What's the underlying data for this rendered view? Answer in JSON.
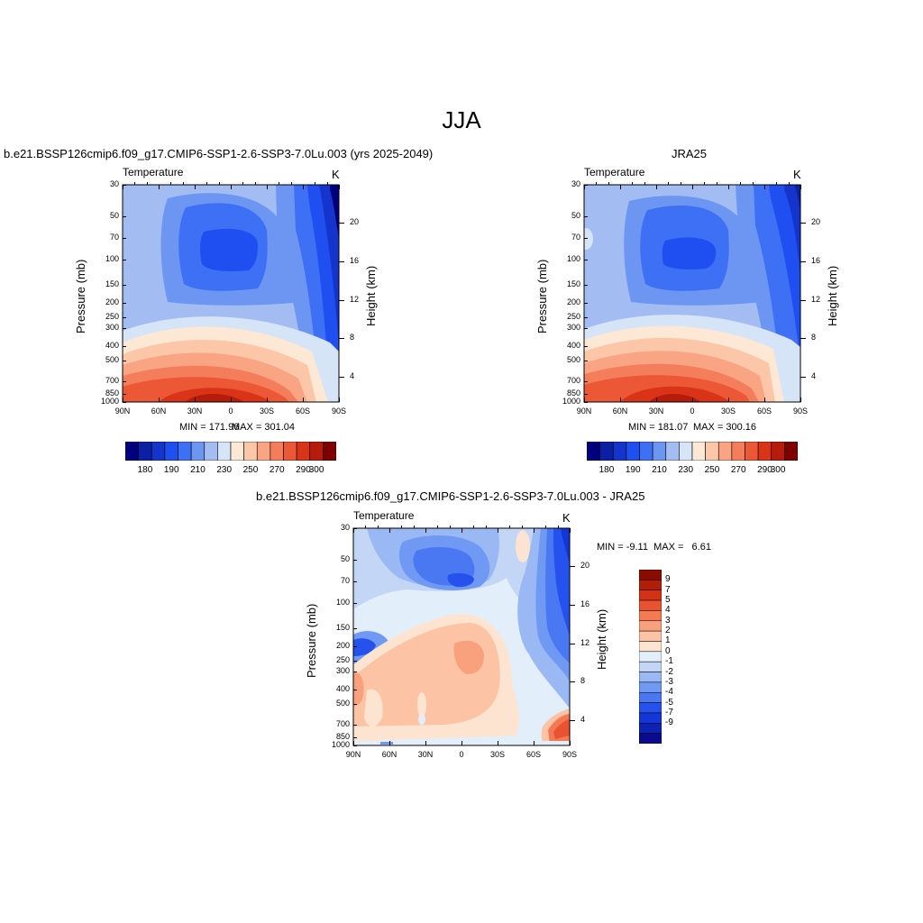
{
  "figure": {
    "title": "JJA"
  },
  "colors": {
    "abs_scale": [
      "#00007f",
      "#0d1fa3",
      "#1434cc",
      "#1f4ff0",
      "#3d70f5",
      "#6d96f3",
      "#a3bdf2",
      "#d6e4f7",
      "#fde8d5",
      "#fcc7a9",
      "#f9a483",
      "#f47e5c",
      "#ec5735",
      "#da3418",
      "#b51c0c",
      "#7f0000"
    ],
    "diff_scale": [
      "#0a0a8c",
      "#0c22b5",
      "#1436d6",
      "#2552ec",
      "#4a78f2",
      "#7099f3",
      "#9ab8f4",
      "#c3d6f6",
      "#e2eefa",
      "#fde4d0",
      "#fcc4a5",
      "#f9a07c",
      "#f47a54",
      "#ea5331",
      "#d43215",
      "#b01f0a",
      "#8a0b00"
    ]
  },
  "chart_data": [
    {
      "type": "heatmap",
      "title": "b.e21.BSSP126cmip6.f09_g17.CMIP6-SSP1-2.6-SSP3-7.0Lu.003 (yrs 2025-2049)",
      "variable": "Temperature",
      "units": "K",
      "min_label": "MIN = 171.96",
      "max_label": "MAX = 301.04",
      "xlabel": "",
      "ylabel": "Pressure (mb)",
      "y2label": "Height (km)",
      "x_ticks": [
        "90N",
        "60N",
        "30N",
        "0",
        "30S",
        "60S",
        "90S"
      ],
      "y_ticks": [
        "30",
        "50",
        "70",
        "100",
        "150",
        "200",
        "250",
        "300",
        "400",
        "500",
        "700",
        "850",
        "1000"
      ],
      "y2_ticks": [
        "20",
        "16",
        "12",
        "8",
        "4"
      ],
      "colorbar": {
        "orientation": "horizontal",
        "labels": [
          "180",
          "190",
          "210",
          "230",
          "250",
          "270",
          "290",
          "300"
        ],
        "levels": [
          175,
          180,
          185,
          190,
          200,
          210,
          220,
          230,
          240,
          250,
          260,
          270,
          280,
          290,
          295,
          300
        ]
      }
    },
    {
      "type": "heatmap",
      "title": "JRA25",
      "variable": "Temperature",
      "units": "K",
      "min_label": "MIN = 181.07",
      "max_label": "MAX = 300.16",
      "xlabel": "",
      "ylabel": "Pressure (mb)",
      "y2label": "Height (km)",
      "x_ticks": [
        "90N",
        "60N",
        "30N",
        "0",
        "30S",
        "60S",
        "90S"
      ],
      "y_ticks": [
        "30",
        "50",
        "70",
        "100",
        "150",
        "200",
        "250",
        "300",
        "400",
        "500",
        "700",
        "850",
        "1000"
      ],
      "y2_ticks": [
        "20",
        "16",
        "12",
        "8",
        "4"
      ],
      "colorbar": {
        "orientation": "horizontal",
        "labels": [
          "180",
          "190",
          "210",
          "230",
          "250",
          "270",
          "290",
          "300"
        ],
        "levels": [
          175,
          180,
          185,
          190,
          200,
          210,
          220,
          230,
          240,
          250,
          260,
          270,
          280,
          290,
          295,
          300
        ]
      }
    },
    {
      "type": "heatmap",
      "title": "b.e21.BSSP126cmip6.f09_g17.CMIP6-SSP1-2.6-SSP3-7.0Lu.003 - JRA25",
      "variable": "Temperature",
      "units": "K",
      "stats_label": "MIN = -9.11  MAX =   6.61",
      "xlabel": "",
      "ylabel": "Pressure (mb)",
      "y2label": "Height (km)",
      "x_ticks": [
        "90N",
        "60N",
        "30N",
        "0",
        "30S",
        "60S",
        "90S"
      ],
      "y_ticks": [
        "30",
        "50",
        "70",
        "100",
        "150",
        "200",
        "250",
        "300",
        "400",
        "500",
        "700",
        "850",
        "1000"
      ],
      "y2_ticks": [
        "20",
        "16",
        "12",
        "8",
        "4"
      ],
      "colorbar": {
        "orientation": "vertical",
        "labels": [
          "9",
          "7",
          "5",
          "4",
          "3",
          "2",
          "1",
          "0",
          "-1",
          "-2",
          "-3",
          "-4",
          "-5",
          "-7",
          "-9"
        ]
      }
    }
  ]
}
